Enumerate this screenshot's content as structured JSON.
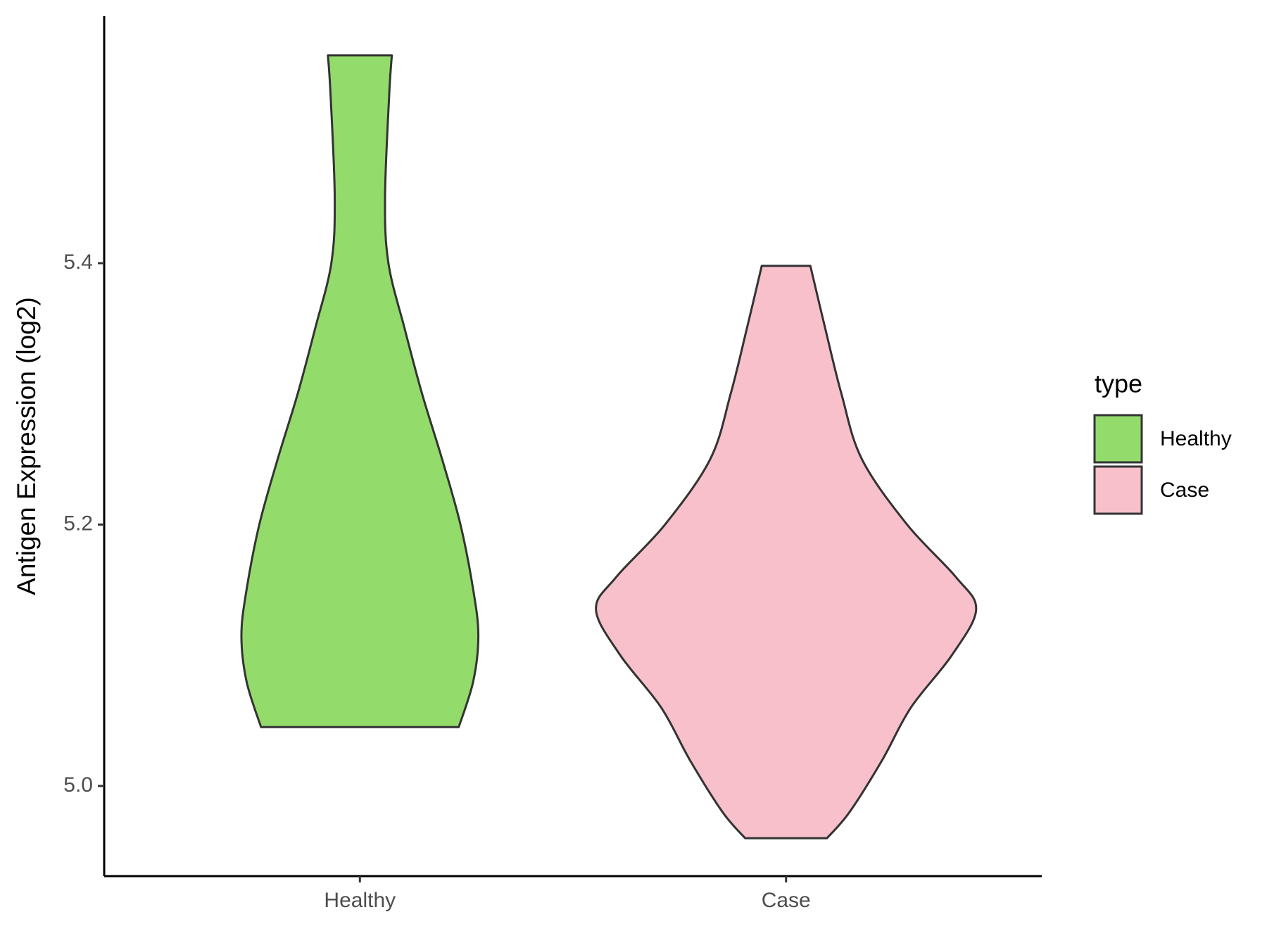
{
  "chart_data": {
    "type": "violin",
    "y_label": "Antigen Expression (log2)",
    "categories": [
      "Healthy",
      "Case"
    ],
    "series": [
      {
        "name": "Healthy",
        "color": "#93db6b",
        "y": [
          5.559,
          5.53,
          5.45,
          5.4,
          5.35,
          5.3,
          5.25,
          5.2,
          5.15,
          5.115,
          5.08,
          5.045
        ],
        "density": [
          0.075,
          0.069,
          0.059,
          0.067,
          0.105,
          0.146,
          0.193,
          0.236,
          0.266,
          0.278,
          0.266,
          0.232
        ]
      },
      {
        "name": "Case",
        "color": "#f7c0cb",
        "y": [
          5.398,
          5.35,
          5.3,
          5.25,
          5.2,
          5.16,
          5.135,
          5.1,
          5.06,
          5.02,
          4.98,
          4.96
        ],
        "density": [
          0.057,
          0.092,
          0.13,
          0.178,
          0.284,
          0.398,
          0.446,
          0.389,
          0.293,
          0.226,
          0.149,
          0.096
        ]
      }
    ],
    "ylim": [
      4.931,
      5.589
    ],
    "yticks": [
      {
        "value": 5.0,
        "label": "5.0"
      },
      5.2,
      5.4
    ],
    "legend_title": "type",
    "legend": "right"
  }
}
